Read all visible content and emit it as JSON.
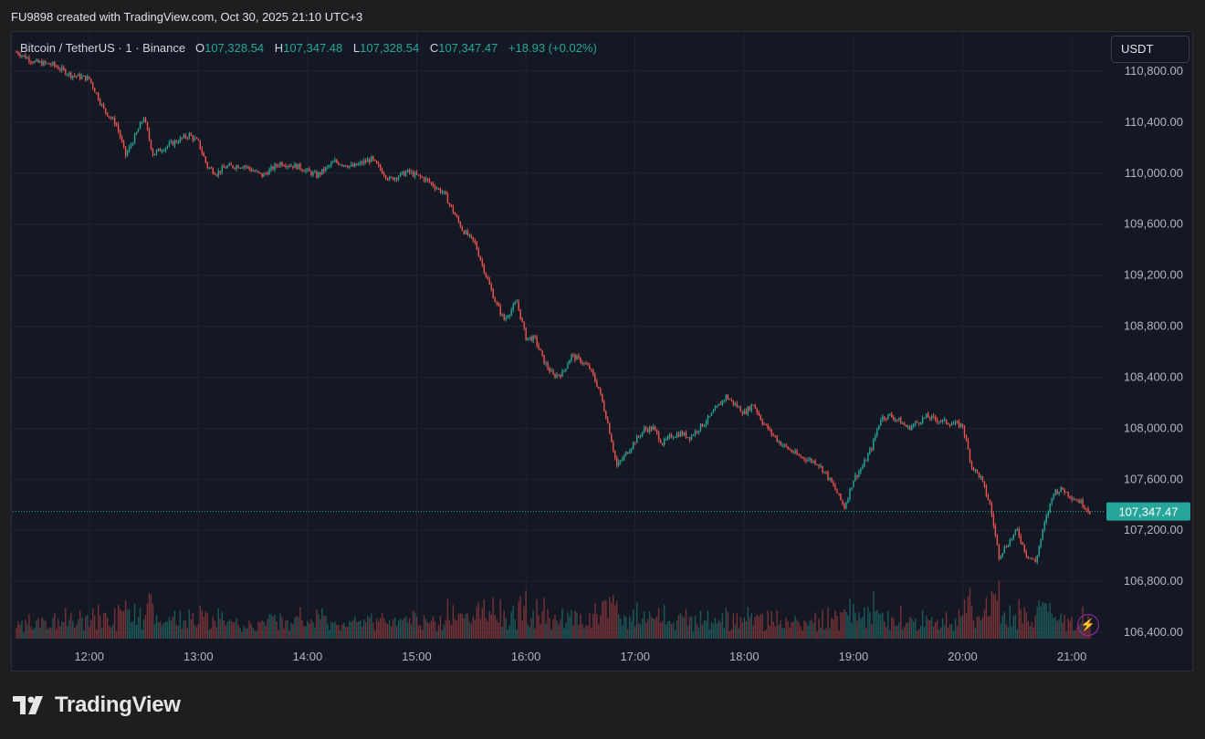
{
  "header": {
    "created_by": "FU9898 created with TradingView.com, Oct 30, 2025 21:10 UTC+3"
  },
  "legend": {
    "symbol": "Bitcoin / TetherUS · 1 · Binance",
    "o_label": "O",
    "o_value": "107,328.54",
    "h_label": "H",
    "h_value": "107,347.48",
    "l_label": "L",
    "l_value": "107,328.54",
    "c_label": "C",
    "c_value": "107,347.47",
    "change": "+18.93 (+0.02%)"
  },
  "currency_button": "USDT",
  "brand": {
    "name": "TradingView"
  },
  "icons": {
    "flash": "flash-icon",
    "logo": "tradingview-logo-icon"
  },
  "colors": {
    "up": "#26a69a",
    "down": "#ef5350",
    "last_price_label": "#26a69a"
  },
  "chart_data": {
    "type": "candlestick",
    "title": "Bitcoin / TetherUS · 1 · Binance",
    "y_ticks": [
      "106,400.00",
      "106,800.00",
      "107,200.00",
      "107,600.00",
      "108,000.00",
      "108,400.00",
      "108,800.00",
      "109,200.00",
      "109,600.00",
      "110,000.00",
      "110,400.00",
      "110,800.00"
    ],
    "y_tick_values": [
      106400,
      106800,
      107200,
      107600,
      108000,
      108400,
      108800,
      109200,
      109600,
      110000,
      110400,
      110800
    ],
    "ylim": [
      106350,
      111100
    ],
    "x_ticks": [
      "12:00",
      "13:00",
      "14:00",
      "15:00",
      "16:00",
      "17:00",
      "18:00",
      "19:00",
      "20:00",
      "21:00"
    ],
    "x_range_hours": [
      11.3,
      21.3
    ],
    "last_price": 107347.47,
    "last_price_label": "107,347.47",
    "close_path": [
      [
        "11:20",
        110950
      ],
      [
        "11:30",
        110870
      ],
      [
        "11:40",
        110850
      ],
      [
        "11:50",
        110770
      ],
      [
        "12:00",
        110740
      ],
      [
        "12:08",
        110500
      ],
      [
        "12:15",
        110380
      ],
      [
        "12:20",
        110140
      ],
      [
        "12:25",
        110280
      ],
      [
        "12:30",
        110440
      ],
      [
        "12:35",
        110150
      ],
      [
        "12:45",
        110230
      ],
      [
        "12:55",
        110300
      ],
      [
        "13:00",
        110240
      ],
      [
        "13:05",
        110050
      ],
      [
        "13:10",
        110000
      ],
      [
        "13:15",
        110050
      ],
      [
        "13:25",
        110060
      ],
      [
        "13:35",
        109980
      ],
      [
        "13:45",
        110080
      ],
      [
        "13:55",
        110050
      ],
      [
        "14:05",
        109980
      ],
      [
        "14:15",
        110090
      ],
      [
        "14:25",
        110050
      ],
      [
        "14:35",
        110110
      ],
      [
        "14:45",
        109950
      ],
      [
        "14:55",
        110010
      ],
      [
        "15:05",
        109950
      ],
      [
        "15:15",
        109840
      ],
      [
        "15:25",
        109560
      ],
      [
        "15:32",
        109450
      ],
      [
        "15:38",
        109200
      ],
      [
        "15:43",
        109000
      ],
      [
        "15:48",
        108850
      ],
      [
        "15:55",
        108990
      ],
      [
        "16:00",
        108710
      ],
      [
        "16:05",
        108700
      ],
      [
        "16:10",
        108520
      ],
      [
        "16:15",
        108410
      ],
      [
        "16:20",
        108430
      ],
      [
        "16:25",
        108570
      ],
      [
        "16:30",
        108530
      ],
      [
        "16:35",
        108470
      ],
      [
        "16:40",
        108310
      ],
      [
        "16:45",
        108040
      ],
      [
        "16:50",
        107700
      ],
      [
        "16:55",
        107800
      ],
      [
        "17:00",
        107900
      ],
      [
        "17:05",
        107990
      ],
      [
        "17:10",
        108000
      ],
      [
        "17:15",
        107880
      ],
      [
        "17:20",
        107940
      ],
      [
        "17:25",
        107960
      ],
      [
        "17:30",
        107930
      ],
      [
        "17:40",
        108070
      ],
      [
        "17:50",
        108250
      ],
      [
        "18:00",
        108120
      ],
      [
        "18:05",
        108190
      ],
      [
        "18:10",
        108050
      ],
      [
        "18:15",
        107960
      ],
      [
        "18:20",
        107880
      ],
      [
        "18:30",
        107780
      ],
      [
        "18:40",
        107730
      ],
      [
        "18:45",
        107640
      ],
      [
        "18:50",
        107520
      ],
      [
        "18:55",
        107380
      ],
      [
        "19:00",
        107600
      ],
      [
        "19:05",
        107700
      ],
      [
        "19:10",
        107850
      ],
      [
        "19:15",
        108080
      ],
      [
        "19:20",
        108100
      ],
      [
        "19:25",
        108060
      ],
      [
        "19:30",
        108000
      ],
      [
        "19:40",
        108090
      ],
      [
        "19:50",
        108050
      ],
      [
        "20:00",
        108020
      ],
      [
        "20:05",
        107700
      ],
      [
        "20:10",
        107610
      ],
      [
        "20:15",
        107400
      ],
      [
        "20:20",
        107000
      ],
      [
        "20:25",
        107100
      ],
      [
        "20:30",
        107200
      ],
      [
        "20:35",
        107010
      ],
      [
        "20:40",
        106950
      ],
      [
        "20:45",
        107250
      ],
      [
        "20:50",
        107500
      ],
      [
        "20:55",
        107520
      ],
      [
        "21:00",
        107460
      ],
      [
        "21:05",
        107420
      ],
      [
        "21:10",
        107347
      ]
    ]
  }
}
